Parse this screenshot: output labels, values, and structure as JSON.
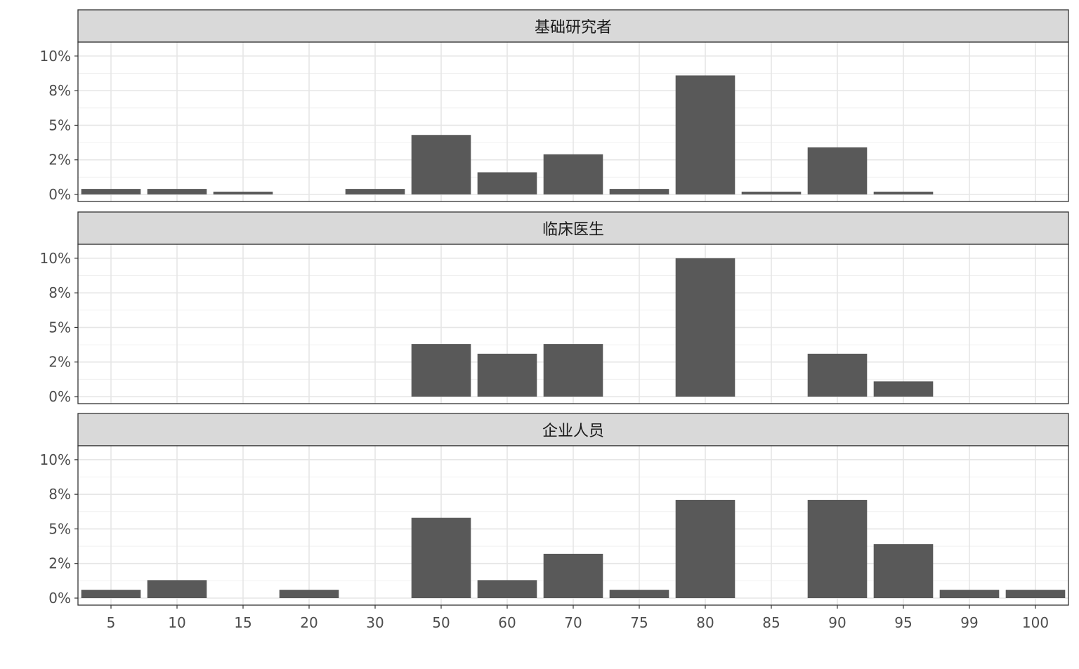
{
  "chart_data": {
    "type": "bar",
    "layout": "faceted-vertical",
    "categories": [
      "5",
      "10",
      "15",
      "20",
      "30",
      "50",
      "60",
      "70",
      "75",
      "80",
      "85",
      "90",
      "95",
      "99",
      "100"
    ],
    "y_ticks": [
      "0%",
      "2%",
      "5%",
      "8%",
      "10%"
    ],
    "y_tick_values": [
      0,
      2.5,
      5,
      7.5,
      10
    ],
    "ylim": [
      0,
      10.5
    ],
    "grid": true,
    "bar_color": "#595959",
    "strip_color": "#d9d9d9",
    "facets": [
      {
        "title": "基础研究者",
        "values": [
          0.4,
          0.4,
          0.2,
          0,
          0.4,
          4.3,
          1.6,
          2.9,
          0.4,
          8.6,
          0.2,
          3.4,
          0.2,
          0,
          0
        ]
      },
      {
        "title": "临床医生",
        "values": [
          0,
          0,
          0,
          0,
          0,
          3.8,
          3.1,
          3.8,
          0,
          10.0,
          0,
          3.1,
          1.1,
          0,
          0
        ]
      },
      {
        "title": "企业人员",
        "values": [
          0.6,
          1.3,
          0,
          0.6,
          0,
          5.8,
          1.3,
          3.2,
          0.6,
          7.1,
          0,
          7.1,
          3.9,
          0.6,
          0.6
        ]
      }
    ]
  }
}
